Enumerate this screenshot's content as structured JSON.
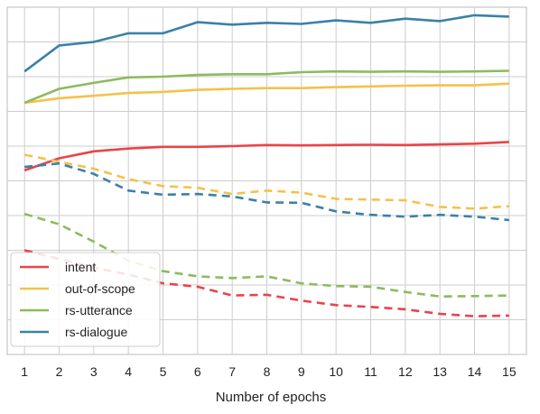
{
  "chart_data": {
    "type": "line",
    "title": "",
    "xlabel": "Number of epochs",
    "ylabel": "",
    "x": [
      1,
      2,
      3,
      4,
      5,
      6,
      7,
      8,
      9,
      10,
      11,
      12,
      13,
      14,
      15
    ],
    "x_ticks": [
      "1",
      "2",
      "3",
      "4",
      "5",
      "6",
      "7",
      "8",
      "9",
      "10",
      "11",
      "12",
      "13",
      "14",
      "15"
    ],
    "xlim": [
      0.5,
      15.5
    ],
    "ylim": [
      0,
      10
    ],
    "y_ticks_labeled": false,
    "grid": true,
    "legend_position": "lower-left",
    "series": [
      {
        "name": "intent",
        "color": "#e8444a",
        "solid": [
          5.3,
          5.65,
          5.85,
          5.93,
          5.98,
          5.98,
          6.0,
          6.03,
          6.02,
          6.03,
          6.04,
          6.03,
          6.05,
          6.07,
          6.12
        ],
        "dashed": [
          3.0,
          2.75,
          2.5,
          2.3,
          2.05,
          1.95,
          1.7,
          1.72,
          1.55,
          1.42,
          1.37,
          1.3,
          1.17,
          1.1,
          1.12
        ]
      },
      {
        "name": "out-of-scope",
        "color": "#f5c14a",
        "solid": [
          7.25,
          7.38,
          7.45,
          7.53,
          7.56,
          7.62,
          7.65,
          7.67,
          7.67,
          7.7,
          7.72,
          7.74,
          7.75,
          7.75,
          7.8
        ],
        "dashed": [
          5.75,
          5.55,
          5.35,
          5.05,
          4.85,
          4.8,
          4.62,
          4.72,
          4.66,
          4.48,
          4.46,
          4.44,
          4.25,
          4.2,
          4.27
        ]
      },
      {
        "name": "rs-utterance",
        "color": "#8cbb5e",
        "solid": [
          7.25,
          7.65,
          7.82,
          7.98,
          8.0,
          8.05,
          8.07,
          8.07,
          8.13,
          8.15,
          8.14,
          8.15,
          8.14,
          8.15,
          8.17
        ],
        "dashed": [
          4.05,
          3.75,
          3.25,
          2.7,
          2.4,
          2.25,
          2.2,
          2.25,
          2.05,
          1.97,
          1.95,
          1.8,
          1.67,
          1.68,
          1.7
        ]
      },
      {
        "name": "rs-dialogue",
        "color": "#3a81a8",
        "solid": [
          8.15,
          8.9,
          9.0,
          9.25,
          9.25,
          9.57,
          9.5,
          9.55,
          9.52,
          9.62,
          9.55,
          9.67,
          9.6,
          9.77,
          9.73
        ],
        "dashed": [
          5.4,
          5.5,
          5.2,
          4.72,
          4.6,
          4.62,
          4.55,
          4.38,
          4.37,
          4.12,
          4.02,
          3.97,
          4.02,
          3.97,
          3.87
        ]
      }
    ]
  }
}
